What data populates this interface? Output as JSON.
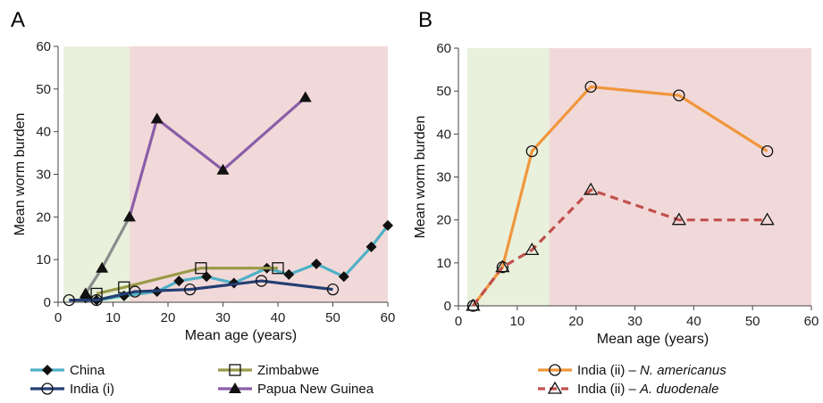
{
  "colors": {
    "green_band": "#e9f0dc",
    "red_band": "#f2d9d9",
    "china": "#4fb0c6",
    "zimbabwe": "#9a9a4a",
    "india_i": "#243f73",
    "png": "#8a5ea8",
    "png_start": "#8c8c8c",
    "india_ii_na": "#f0963c",
    "india_ii_ad": "#c0504d",
    "marker": "#111111"
  },
  "chart_data": [
    {
      "type": "line",
      "panel_label": "A",
      "xlabel": "Mean age (years)",
      "ylabel": "Mean worm burden",
      "xlim": [
        0,
        60
      ],
      "ylim": [
        0,
        60
      ],
      "xticks": [
        0,
        10,
        20,
        30,
        40,
        50,
        60
      ],
      "yticks": [
        0,
        10,
        20,
        30,
        40,
        50,
        60
      ],
      "bands": [
        {
          "from": 1,
          "to": 13,
          "color": "green_band"
        },
        {
          "from": 13,
          "to": 60,
          "color": "red_band"
        }
      ],
      "series": [
        {
          "name": "China",
          "color": "china",
          "marker": "diamond",
          "dash": false,
          "x": [
            5,
            7,
            12,
            18,
            22,
            27,
            32,
            38,
            42,
            47,
            52,
            57,
            60
          ],
          "y": [
            1,
            0.5,
            1.5,
            2.5,
            5,
            6,
            4.5,
            8,
            6.5,
            9,
            6,
            13,
            18
          ]
        },
        {
          "name": "Zimbabwe",
          "color": "zimbabwe",
          "marker": "square",
          "dash": false,
          "x": [
            7,
            12,
            26,
            40
          ],
          "y": [
            2,
            3.5,
            8,
            8
          ]
        },
        {
          "name": "India (i)",
          "color": "india_i",
          "marker": "circle",
          "dash": false,
          "x": [
            2,
            7,
            14,
            24,
            37,
            50
          ],
          "y": [
            0.5,
            0.5,
            2.5,
            3,
            5,
            3
          ]
        },
        {
          "name": "Papua New Guinea",
          "color": "png",
          "marker": "triangle",
          "dash": false,
          "x": [
            5,
            8,
            13,
            18,
            30,
            45
          ],
          "y": [
            2,
            8,
            20,
            43,
            31,
            48
          ]
        }
      ]
    },
    {
      "type": "line",
      "panel_label": "B",
      "xlabel": "Mean age (years)",
      "ylabel": "Mean worm burden",
      "xlim": [
        0,
        60
      ],
      "ylim": [
        0,
        60
      ],
      "xticks": [
        0,
        10,
        20,
        30,
        40,
        50,
        60
      ],
      "yticks": [
        0,
        10,
        20,
        30,
        40,
        50,
        60
      ],
      "bands": [
        {
          "from": 1.5,
          "to": 15.5,
          "color": "green_band"
        },
        {
          "from": 15.5,
          "to": 60,
          "color": "red_band"
        }
      ],
      "series": [
        {
          "name_prefix": "India (ii) – ",
          "name_species": "N. americanus",
          "color": "india_ii_na",
          "marker": "circle",
          "dash": false,
          "x": [
            2.5,
            7.5,
            12.5,
            22.5,
            37.5,
            52.5
          ],
          "y": [
            0,
            9,
            36,
            51,
            49,
            36
          ]
        },
        {
          "name_prefix": "India (ii) – ",
          "name_species": "A. duodenale",
          "color": "india_ii_ad",
          "marker": "triangle",
          "dash": true,
          "x": [
            2.5,
            7.5,
            12.5,
            22.5,
            37.5,
            52.5
          ],
          "y": [
            0,
            9,
            13,
            27,
            20,
            20
          ]
        }
      ]
    }
  ]
}
